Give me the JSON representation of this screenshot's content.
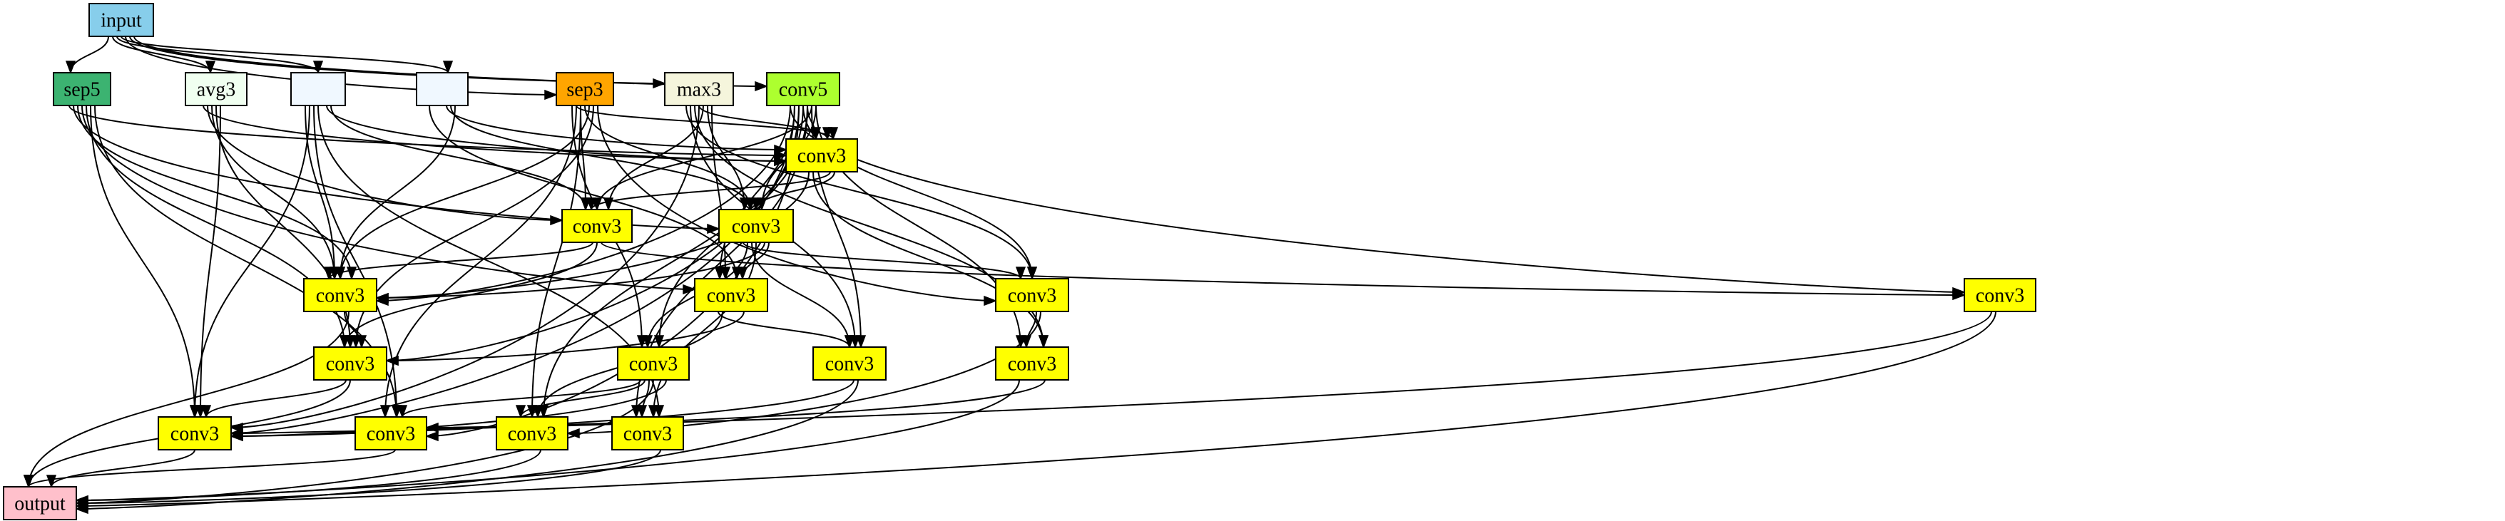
{
  "graph": {
    "colors": {
      "input": "#87ceeb",
      "sep5": "#3cb371",
      "avg3": "#f0fff0",
      "blank": "#f0f8ff",
      "sep3": "#ffa500",
      "max3": "#f5f5dc",
      "conv5": "#adff2f",
      "conv3": "#ffff00",
      "output": "#ffc0cb"
    },
    "nodes": [
      {
        "id": "input",
        "label": "input",
        "color": "input"
      },
      {
        "id": "sep5",
        "label": "sep5",
        "color": "sep5"
      },
      {
        "id": "avg3",
        "label": "avg3",
        "color": "avg3"
      },
      {
        "id": "b1",
        "label": "",
        "color": "blank"
      },
      {
        "id": "b2",
        "label": "",
        "color": "blank"
      },
      {
        "id": "sep3",
        "label": "sep3",
        "color": "sep3"
      },
      {
        "id": "max3",
        "label": "max3",
        "color": "max3"
      },
      {
        "id": "conv5",
        "label": "conv5",
        "color": "conv5"
      },
      {
        "id": "c1",
        "label": "conv3",
        "color": "conv3"
      },
      {
        "id": "c2",
        "label": "conv3",
        "color": "conv3"
      },
      {
        "id": "c3",
        "label": "conv3",
        "color": "conv3"
      },
      {
        "id": "c4",
        "label": "conv3",
        "color": "conv3"
      },
      {
        "id": "c5",
        "label": "conv3",
        "color": "conv3"
      },
      {
        "id": "c6",
        "label": "conv3",
        "color": "conv3"
      },
      {
        "id": "c7",
        "label": "conv3",
        "color": "conv3"
      },
      {
        "id": "c8",
        "label": "conv3",
        "color": "conv3"
      },
      {
        "id": "c9",
        "label": "conv3",
        "color": "conv3"
      },
      {
        "id": "c10",
        "label": "conv3",
        "color": "conv3"
      },
      {
        "id": "c11",
        "label": "conv3",
        "color": "conv3"
      },
      {
        "id": "c12",
        "label": "conv3",
        "color": "conv3"
      },
      {
        "id": "c13",
        "label": "conv3",
        "color": "conv3"
      },
      {
        "id": "c14",
        "label": "conv3",
        "color": "conv3"
      },
      {
        "id": "c15",
        "label": "conv3",
        "color": "conv3"
      },
      {
        "id": "output",
        "label": "output",
        "color": "output"
      }
    ],
    "edges": [
      [
        "input",
        "sep5"
      ],
      [
        "input",
        "avg3"
      ],
      [
        "input",
        "b1"
      ],
      [
        "input",
        "b2"
      ],
      [
        "input",
        "sep3"
      ],
      [
        "input",
        "max3"
      ],
      [
        "input",
        "conv5"
      ],
      [
        "sep5",
        "c1"
      ],
      [
        "sep5",
        "c3"
      ],
      [
        "sep5",
        "c4"
      ],
      [
        "sep5",
        "c5"
      ],
      [
        "sep5",
        "c6"
      ],
      [
        "sep5",
        "c12"
      ],
      [
        "sep5",
        "c13"
      ],
      [
        "avg3",
        "c1"
      ],
      [
        "avg3",
        "c2"
      ],
      [
        "avg3",
        "c4"
      ],
      [
        "avg3",
        "c6"
      ],
      [
        "avg3",
        "c12"
      ],
      [
        "b1",
        "c1"
      ],
      [
        "b1",
        "c2"
      ],
      [
        "b1",
        "c4"
      ],
      [
        "b1",
        "c12"
      ],
      [
        "b1",
        "c13"
      ],
      [
        "b1",
        "c15"
      ],
      [
        "b2",
        "c1"
      ],
      [
        "b2",
        "c3"
      ],
      [
        "b2",
        "c4"
      ],
      [
        "b2",
        "c5"
      ],
      [
        "sep3",
        "c1"
      ],
      [
        "sep3",
        "c2"
      ],
      [
        "sep3",
        "c3"
      ],
      [
        "sep3",
        "c4"
      ],
      [
        "sep3",
        "c6"
      ],
      [
        "sep3",
        "c7"
      ],
      [
        "sep3",
        "c8"
      ],
      [
        "sep3",
        "c13"
      ],
      [
        "sep3",
        "c14"
      ],
      [
        "max3",
        "c1"
      ],
      [
        "max3",
        "c2"
      ],
      [
        "max3",
        "c3"
      ],
      [
        "max3",
        "c5"
      ],
      [
        "max3",
        "c7"
      ],
      [
        "max3",
        "c9"
      ],
      [
        "max3",
        "c10"
      ],
      [
        "max3",
        "c12"
      ],
      [
        "conv5",
        "c1"
      ],
      [
        "conv5",
        "c2"
      ],
      [
        "conv5",
        "c3"
      ],
      [
        "conv5",
        "c4"
      ],
      [
        "conv5",
        "c5"
      ],
      [
        "conv5",
        "c6"
      ],
      [
        "conv5",
        "c7"
      ],
      [
        "conv5",
        "c8"
      ],
      [
        "conv5",
        "c9"
      ],
      [
        "conv5",
        "c10"
      ],
      [
        "conv5",
        "c11"
      ],
      [
        "conv5",
        "c12"
      ],
      [
        "conv5",
        "c13"
      ],
      [
        "conv5",
        "c14"
      ],
      [
        "conv5",
        "c15"
      ],
      [
        "c1",
        "c2"
      ],
      [
        "c1",
        "c3"
      ],
      [
        "c1",
        "c4"
      ],
      [
        "c1",
        "c10"
      ],
      [
        "c2",
        "c4"
      ],
      [
        "c2",
        "c6"
      ],
      [
        "c2",
        "c11"
      ],
      [
        "c3",
        "c4"
      ],
      [
        "c3",
        "c5"
      ],
      [
        "c3",
        "c7"
      ],
      [
        "c3",
        "c8"
      ],
      [
        "c3",
        "c9"
      ],
      [
        "c3",
        "c15"
      ],
      [
        "c4",
        "c6"
      ],
      [
        "c4",
        "output"
      ],
      [
        "c5",
        "c6"
      ],
      [
        "c5",
        "c9"
      ],
      [
        "c5",
        "c14"
      ],
      [
        "c6",
        "c12"
      ],
      [
        "c6",
        "output"
      ],
      [
        "c7",
        "c10"
      ],
      [
        "c7",
        "c14"
      ],
      [
        "c8",
        "c12"
      ],
      [
        "c8",
        "c13"
      ],
      [
        "c8",
        "c14"
      ],
      [
        "c8",
        "c15"
      ],
      [
        "c8",
        "output"
      ],
      [
        "c9",
        "c12"
      ],
      [
        "c9",
        "output"
      ],
      [
        "c10",
        "c13"
      ],
      [
        "c10",
        "output"
      ],
      [
        "c11",
        "c12"
      ],
      [
        "c11",
        "output"
      ],
      [
        "c12",
        "output"
      ],
      [
        "c13",
        "output"
      ],
      [
        "c14",
        "output"
      ],
      [
        "c15",
        "output"
      ]
    ]
  }
}
